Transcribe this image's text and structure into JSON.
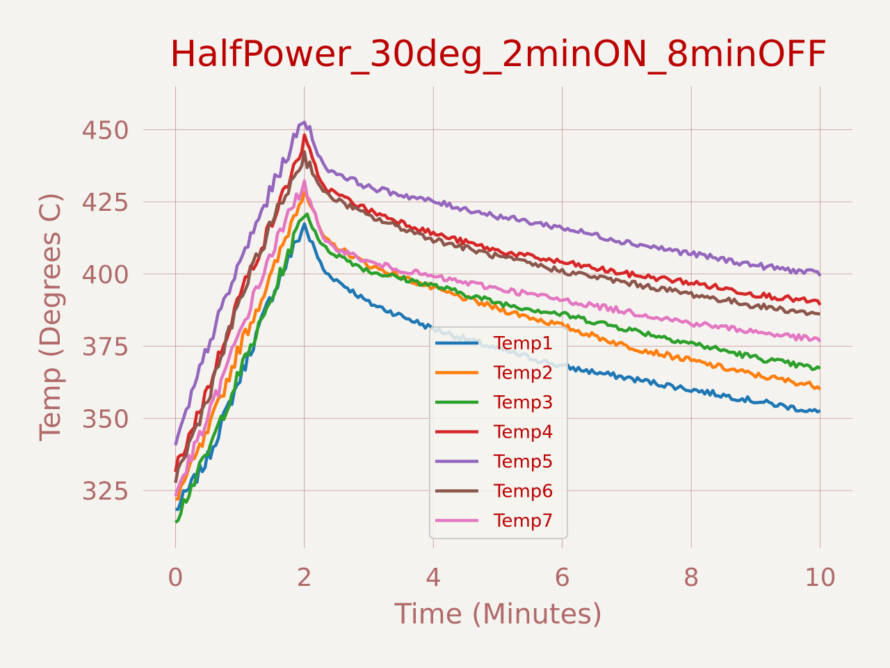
{
  "chart_data": {
    "type": "line",
    "title": "HalfPower_30deg_2minON_8minOFF",
    "xlabel": "Time (Minutes)",
    "ylabel": "Temp (Degrees C)",
    "xlim": [
      -0.5,
      10.5
    ],
    "ylim": [
      305,
      465
    ],
    "xticks": [
      0,
      2,
      4,
      6,
      8,
      10
    ],
    "xtick_labels": [
      "0",
      "2",
      "4",
      "6",
      "8",
      "10"
    ],
    "yticks": [
      325,
      350,
      375,
      400,
      425,
      450
    ],
    "ytick_labels": [
      "325",
      "350",
      "375",
      "400",
      "425",
      "450"
    ],
    "grid": true,
    "legend_position": "center-bottom",
    "series": [
      {
        "name": "Temp1",
        "color": "#1f77b4",
        "x": [
          0,
          0.5,
          1,
          1.5,
          2,
          2.3,
          3,
          4,
          5,
          6,
          7,
          8,
          9,
          10
        ],
        "y": [
          318,
          336,
          364,
          393,
          417,
          401,
          390,
          381,
          374,
          368,
          364,
          360,
          356,
          352
        ]
      },
      {
        "name": "Temp2",
        "color": "#ff7f0e",
        "x": [
          0,
          0.5,
          1,
          1.5,
          2,
          2.3,
          3,
          4,
          5,
          6,
          7,
          8,
          9,
          10
        ],
        "y": [
          322,
          345,
          375,
          400,
          430,
          412,
          403,
          395,
          388,
          382,
          375,
          370,
          365,
          361
        ]
      },
      {
        "name": "Temp3",
        "color": "#2ca02c",
        "x": [
          0,
          0.5,
          1,
          1.5,
          2,
          2.3,
          3,
          4,
          5,
          6,
          7,
          8,
          9,
          10
        ],
        "y": [
          315,
          338,
          366,
          392,
          422,
          409,
          401,
          396,
          390,
          386,
          381,
          376,
          371,
          367
        ]
      },
      {
        "name": "Temp4",
        "color": "#d62728",
        "x": [
          0,
          0.5,
          1,
          1.5,
          2,
          2.3,
          3,
          4,
          5,
          6,
          7,
          8,
          9,
          10
        ],
        "y": [
          332,
          360,
          393,
          418,
          446,
          430,
          422,
          414,
          408,
          404,
          400,
          397,
          393,
          390
        ]
      },
      {
        "name": "Temp5",
        "color": "#9467bd",
        "x": [
          0,
          0.5,
          1,
          1.5,
          2,
          2.3,
          3,
          4,
          5,
          6,
          7,
          8,
          9,
          10
        ],
        "y": [
          340,
          375,
          404,
          430,
          454,
          437,
          430,
          425,
          420,
          416,
          411,
          407,
          403,
          400
        ]
      },
      {
        "name": "Temp6",
        "color": "#8c564b",
        "x": [
          0,
          0.5,
          1,
          1.5,
          2,
          2.3,
          3,
          4,
          5,
          6,
          7,
          8,
          9,
          10
        ],
        "y": [
          329,
          357,
          391,
          418,
          441,
          428,
          420,
          412,
          406,
          401,
          397,
          393,
          389,
          386
        ]
      },
      {
        "name": "Temp7",
        "color": "#e377c2",
        "x": [
          0,
          0.5,
          1,
          1.5,
          2,
          2.3,
          3,
          4,
          5,
          6,
          7,
          8,
          9,
          10
        ],
        "y": [
          324,
          350,
          380,
          408,
          432,
          411,
          404,
          399,
          395,
          391,
          387,
          383,
          380,
          377
        ]
      }
    ]
  }
}
